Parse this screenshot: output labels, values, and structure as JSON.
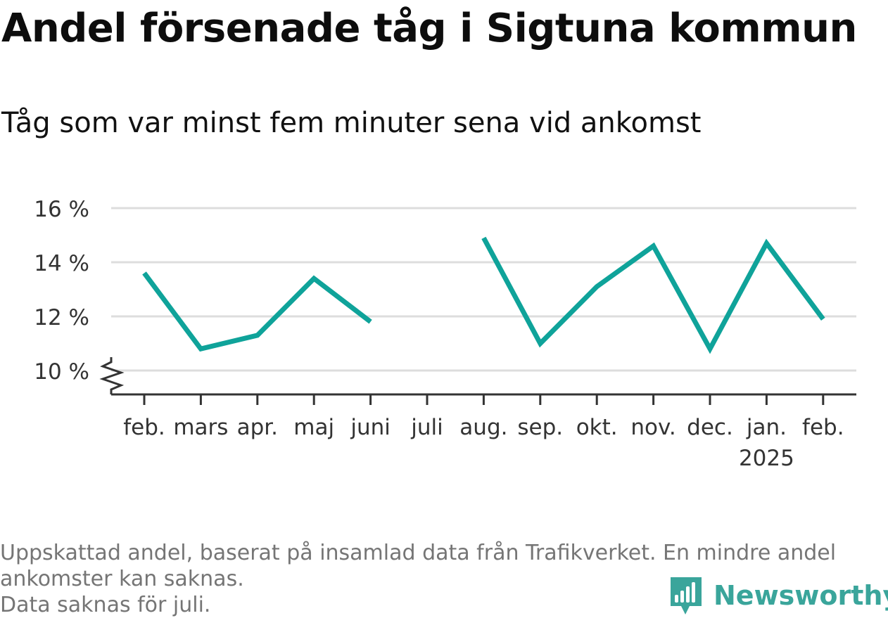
{
  "header": {
    "title": "Andel försenade tåg i Sigtuna kommun",
    "subtitle": "Tåg som var minst fem minuter sena vid ankomst"
  },
  "footer": {
    "note_line1": "Uppskattad andel, baserat på insamlad data från Trafikverket. En mindre andel",
    "note_line2": "ankomster kan saknas.",
    "note_line3": "Data saknas för juli.",
    "brand": "Newsworthy"
  },
  "colors": {
    "line": "#0fa39a",
    "grid": "#dddddd",
    "axis": "#333333",
    "brand": "#3aa59b"
  },
  "chart_data": {
    "type": "line",
    "title": "Andel försenade tåg i Sigtuna kommun",
    "subtitle": "Tåg som var minst fem minuter sena vid ankomst",
    "categories": [
      "feb.",
      "mars",
      "apr.",
      "maj",
      "juni",
      "juli",
      "aug.",
      "sep.",
      "okt.",
      "nov.",
      "dec.",
      "jan.",
      "feb."
    ],
    "category_sublabels": [
      "",
      "",
      "",
      "",
      "",
      "",
      "",
      "",
      "",
      "",
      "",
      "2025",
      ""
    ],
    "series": [
      {
        "values": [
          13.6,
          10.8,
          11.3,
          13.4,
          11.8,
          null,
          14.9,
          11.0,
          13.1,
          14.6,
          10.8,
          14.7,
          11.9
        ]
      }
    ],
    "ylim": [
      10,
      16
    ],
    "yticks": [
      10,
      12,
      14,
      16
    ],
    "ytick_labels": [
      "10 %",
      "12 %",
      "14 %",
      "16 %"
    ],
    "y_axis_break": true,
    "grid": true,
    "legend": "none",
    "xlabel": "",
    "ylabel": ""
  }
}
